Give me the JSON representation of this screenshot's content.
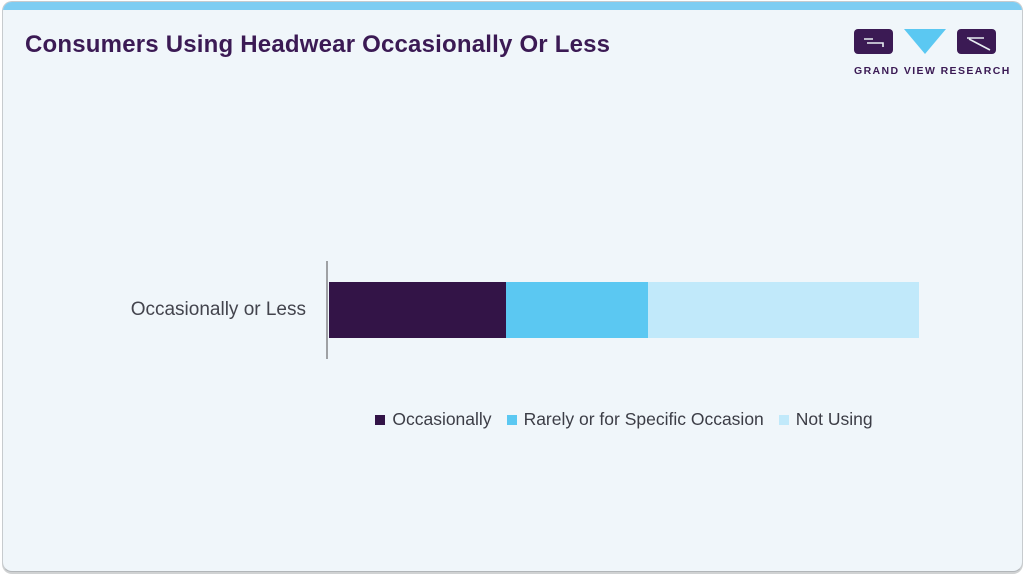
{
  "card": {
    "title": "Consumers Using Headwear Occasionally Or Less"
  },
  "logo": {
    "wordmark": "GRAND VIEW RESEARCH",
    "glyphs": [
      "g-block",
      "v-triangle",
      "r-block"
    ],
    "purple": "#3b1a54",
    "blue": "#5bc8f2"
  },
  "colors": {
    "page_bg": "#ffffff",
    "card_bg": "#f0f6fa",
    "accent_strip": "#7ecdf2",
    "title_text": "#3b1a54",
    "body_text": "#3c3d46",
    "axis_line": "#9fa1a4"
  },
  "chart_data": {
    "type": "bar",
    "orientation": "horizontal",
    "stacked": true,
    "title": "Consumers Using Headwear Occasionally Or Less",
    "categories": [
      "Occasionally or Less"
    ],
    "series": [
      {
        "name": "Occasionally",
        "values": [
          30
        ],
        "color": "#331447"
      },
      {
        "name": "Rarely or for Specific Occasion",
        "values": [
          24
        ],
        "color": "#5bc8f2"
      },
      {
        "name": "Not Using",
        "values": [
          46
        ],
        "color": "#c1e9fa"
      }
    ],
    "xlim": [
      0,
      100
    ],
    "unit": "percent_share_estimated_from_bar_lengths",
    "grid": false,
    "x_axis_ticks_hidden": true,
    "legend_position": "bottom-center"
  }
}
